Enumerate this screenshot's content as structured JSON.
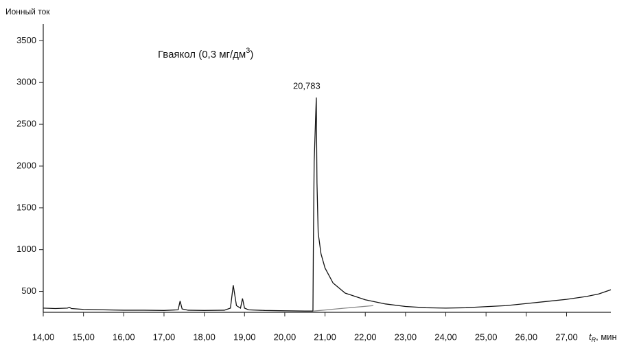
{
  "chart_data": {
    "type": "line",
    "y_label": "Ионный ток",
    "x_label_symbol": "t",
    "x_label_subscript": "R",
    "x_label_unit": ", мин",
    "annotation": {
      "prefix": "Гваякол (0,3 мг/дм",
      "superscript": "3",
      "suffix": ")"
    },
    "peak_label": {
      "x": 20.783,
      "label": "20,783"
    },
    "xlim": [
      14,
      28.1
    ],
    "ylim": [
      250,
      3700
    ],
    "xticks": [
      {
        "value": 14,
        "label": "14,00"
      },
      {
        "value": 15,
        "label": "15,00"
      },
      {
        "value": 16,
        "label": "16,00"
      },
      {
        "value": 17,
        "label": "17,00"
      },
      {
        "value": 18,
        "label": "18,00"
      },
      {
        "value": 19,
        "label": "19,00"
      },
      {
        "value": 20,
        "label": "20,00"
      },
      {
        "value": 21,
        "label": "21,00"
      },
      {
        "value": 22,
        "label": "22,00"
      },
      {
        "value": 23,
        "label": "23,00"
      },
      {
        "value": 24,
        "label": "24,00"
      },
      {
        "value": 25,
        "label": "25,00"
      },
      {
        "value": 26,
        "label": "26,00"
      },
      {
        "value": 27,
        "label": "27,00"
      }
    ],
    "yticks": [
      500,
      1000,
      1500,
      2000,
      2500,
      3000,
      3500
    ],
    "series": [
      {
        "color": "#111111",
        "x": [
          14,
          14.3,
          14.6,
          14.65,
          14.7,
          15,
          15.5,
          16,
          16.5,
          17,
          17.35,
          17.4,
          17.45,
          17.6,
          18,
          18.5,
          18.65,
          18.72,
          18.8,
          18.9,
          18.95,
          19.0,
          19.1,
          19.5,
          20,
          20.5,
          20.7,
          20.71,
          20.73,
          20.783,
          20.8,
          20.83,
          20.9,
          21.0,
          21.2,
          21.5,
          22,
          22.5,
          23,
          23.5,
          24,
          24.5,
          25,
          25.5,
          26,
          26.5,
          27,
          27.5,
          27.8,
          28.1
        ],
        "values": [
          300,
          295,
          300,
          310,
          295,
          285,
          280,
          275,
          275,
          272,
          280,
          385,
          290,
          275,
          272,
          275,
          300,
          575,
          330,
          300,
          415,
          300,
          280,
          272,
          268,
          265,
          265,
          1000,
          2050,
          2820,
          1800,
          1200,
          950,
          780,
          600,
          480,
          400,
          350,
          320,
          305,
          300,
          305,
          318,
          330,
          355,
          380,
          405,
          440,
          470,
          520
        ]
      },
      {
        "color": "#888888",
        "x": [
          20.72,
          21.5,
          22.2
        ],
        "values": [
          265,
          300,
          330
        ]
      }
    ]
  }
}
